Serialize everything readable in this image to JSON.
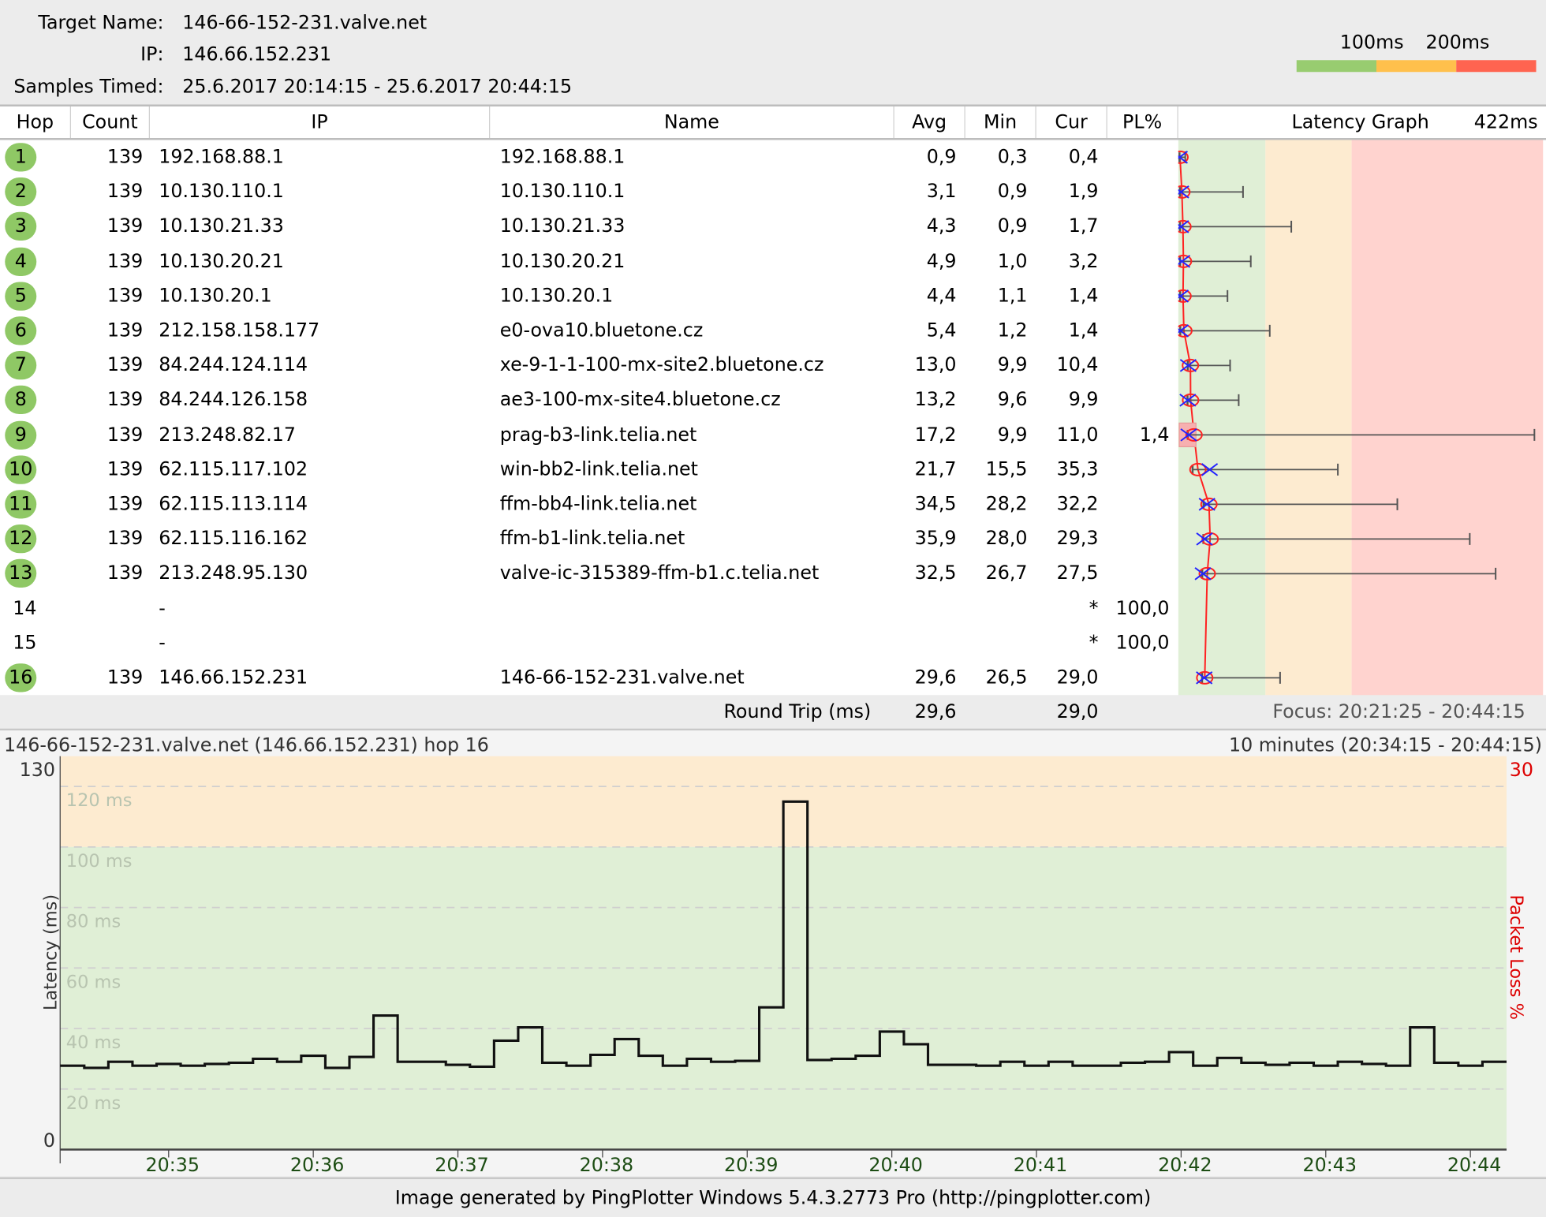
{
  "header": {
    "target_name_label": "Target Name:",
    "target_name": "146-66-152-231.valve.net",
    "ip_label": "IP:",
    "ip": "146.66.152.231",
    "samples_label": "Samples Timed:",
    "samples": "25.6.2017 20:14:15 - 25.6.2017 20:44:15",
    "legend": {
      "label_100": "100ms",
      "label_200": "200ms",
      "colors": [
        "#98cc70",
        "#ffc04c",
        "#ff6450"
      ]
    }
  },
  "table": {
    "columns": [
      "Hop",
      "Count",
      "IP",
      "Name",
      "Avg",
      "Min",
      "Cur",
      "PL%",
      "Latency Graph",
      "422ms"
    ],
    "graph_max_ms": 422,
    "zone_colors": {
      "good": "#e0efd6",
      "warn": "#fdebd0",
      "bad": "#ffd3cf"
    },
    "rows": [
      {
        "hop": "1",
        "count": "139",
        "ip": "192.168.88.1",
        "name": "192.168.88.1",
        "avg": "0,9",
        "min": "0,3",
        "cur": "0,4",
        "pl": "",
        "ok": true,
        "max_ms": 7
      },
      {
        "hop": "2",
        "count": "139",
        "ip": "10.130.110.1",
        "name": "10.130.110.1",
        "avg": "3,1",
        "min": "0,9",
        "cur": "1,9",
        "pl": "",
        "ok": true,
        "max_ms": 74
      },
      {
        "hop": "3",
        "count": "139",
        "ip": "10.130.21.33",
        "name": "10.130.21.33",
        "avg": "4,3",
        "min": "0,9",
        "cur": "1,7",
        "pl": "",
        "ok": true,
        "max_ms": 130
      },
      {
        "hop": "4",
        "count": "139",
        "ip": "10.130.20.21",
        "name": "10.130.20.21",
        "avg": "4,9",
        "min": "1,0",
        "cur": "3,2",
        "pl": "",
        "ok": true,
        "max_ms": 83
      },
      {
        "hop": "5",
        "count": "139",
        "ip": "10.130.20.1",
        "name": "10.130.20.1",
        "avg": "4,4",
        "min": "1,1",
        "cur": "1,4",
        "pl": "",
        "ok": true,
        "max_ms": 56
      },
      {
        "hop": "6",
        "count": "139",
        "ip": "212.158.158.177",
        "name": "e0-ova10.bluetone.cz",
        "avg": "5,4",
        "min": "1,2",
        "cur": "1,4",
        "pl": "",
        "ok": true,
        "max_ms": 105
      },
      {
        "hop": "7",
        "count": "139",
        "ip": "84.244.124.114",
        "name": "xe-9-1-1-100-mx-site2.bluetone.cz",
        "avg": "13,0",
        "min": "9,9",
        "cur": "10,4",
        "pl": "",
        "ok": true,
        "max_ms": 59
      },
      {
        "hop": "8",
        "count": "139",
        "ip": "84.244.126.158",
        "name": "ae3-100-mx-site4.bluetone.cz",
        "avg": "13,2",
        "min": "9,6",
        "cur": "9,9",
        "pl": "",
        "ok": true,
        "max_ms": 69
      },
      {
        "hop": "9",
        "count": "139",
        "ip": "213.248.82.17",
        "name": "prag-b3-link.telia.net",
        "avg": "17,2",
        "min": "9,9",
        "cur": "11,0",
        "pl": "1,4",
        "ok": true,
        "max_ms": 412
      },
      {
        "hop": "10",
        "count": "139",
        "ip": "62.115.117.102",
        "name": "win-bb2-link.telia.net",
        "avg": "21,7",
        "min": "15,5",
        "cur": "35,3",
        "pl": "",
        "ok": true,
        "max_ms": 184
      },
      {
        "hop": "11",
        "count": "139",
        "ip": "62.115.113.114",
        "name": "ffm-bb4-link.telia.net",
        "avg": "34,5",
        "min": "28,2",
        "cur": "32,2",
        "pl": "",
        "ok": true,
        "max_ms": 253
      },
      {
        "hop": "12",
        "count": "139",
        "ip": "62.115.116.162",
        "name": "ffm-b1-link.telia.net",
        "avg": "35,9",
        "min": "28,0",
        "cur": "29,3",
        "pl": "",
        "ok": true,
        "max_ms": 337
      },
      {
        "hop": "13",
        "count": "139",
        "ip": "213.248.95.130",
        "name": "valve-ic-315389-ffm-b1.c.telia.net",
        "avg": "32,5",
        "min": "26,7",
        "cur": "27,5",
        "pl": "",
        "ok": true,
        "max_ms": 367
      },
      {
        "hop": "14",
        "count": "",
        "ip": "-",
        "name": "",
        "avg": "",
        "min": "",
        "cur": "*",
        "pl": "100,0",
        "ok": false
      },
      {
        "hop": "15",
        "count": "",
        "ip": "-",
        "name": "",
        "avg": "",
        "min": "",
        "cur": "*",
        "pl": "100,0",
        "ok": false
      },
      {
        "hop": "16",
        "count": "139",
        "ip": "146.66.152.231",
        "name": "146-66-152-231.valve.net",
        "avg": "29,6",
        "min": "26,5",
        "cur": "29,0",
        "pl": "",
        "ok": true,
        "max_ms": 117
      }
    ]
  },
  "round_trip": {
    "label": "Round Trip (ms)",
    "avg": "29,6",
    "cur": "29,0",
    "focus": "Focus: 20:21:25 - 20:44:15"
  },
  "chart_data": {
    "type": "line",
    "title": "146-66-152-231.valve.net (146.66.152.231) hop 16",
    "range_label": "10 minutes (20:34:15 - 20:44:15)",
    "ylabel": "Latency (ms)",
    "y2label": "Packet Loss %",
    "ylim": [
      0,
      130
    ],
    "y_top_label": "130",
    "y_bottom_label": "0",
    "y2_top_label": "30",
    "grid_labels": [
      "20 ms",
      "40 ms",
      "60 ms",
      "80 ms",
      "100 ms",
      "120 ms"
    ],
    "grid_values": [
      20,
      40,
      60,
      80,
      100,
      120
    ],
    "x_ticks": [
      "20:35",
      "20:36",
      "20:37",
      "20:38",
      "20:39",
      "20:40",
      "20:41",
      "20:42",
      "20:43",
      "20:44"
    ],
    "x_start": "20:34:15",
    "x_end": "20:44:15",
    "step_seconds": 10,
    "warn_threshold_ms": 100,
    "values": [
      27.7,
      27,
      29,
      27.7,
      28.3,
      27.7,
      28.3,
      28.7,
      30,
      29,
      31,
      27,
      30.6,
      44.3,
      29,
      29,
      28,
      27.4,
      36,
      40.4,
      28.7,
      27.7,
      31.3,
      36.5,
      31,
      27.7,
      30,
      29,
      29.3,
      47,
      115,
      29.6,
      30,
      31,
      39,
      34.8,
      28,
      28,
      27.7,
      29,
      27.7,
      29,
      27.7,
      27.7,
      28.7,
      29,
      32.2,
      27.7,
      30.3,
      28.7,
      28,
      28.7,
      27.7,
      29,
      28.3,
      27.7,
      40.4,
      28.7,
      27.7,
      29
    ]
  },
  "footer": {
    "text": "Image generated by PingPlotter Windows 5.4.3.2773 Pro (http://pingplotter.com)"
  }
}
